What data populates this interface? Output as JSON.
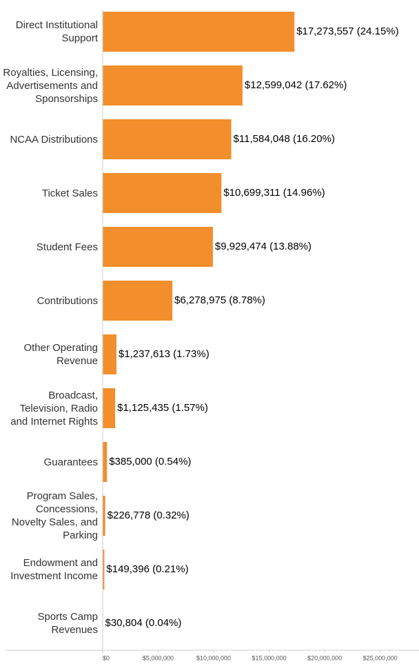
{
  "chart_data": {
    "type": "bar",
    "orientation": "horizontal",
    "categories": [
      "Direct Institutional Support",
      "Royalties, Licensing, Advertisements and Sponsorships",
      "NCAA Distributions",
      "Ticket Sales",
      "Student Fees",
      "Contributions",
      "Other Operating Revenue",
      "Broadcast, Television, Radio and Internet Rights",
      "Guarantees",
      "Program Sales, Concessions, Novelty Sales, and Parking",
      "Endowment and Investment Income",
      "Sports Camp Revenues"
    ],
    "values": [
      17273557,
      12599042,
      11584048,
      10699311,
      9929474,
      6278975,
      1237613,
      1125435,
      385000,
      226778,
      149396,
      30804
    ],
    "value_labels": [
      "$17,273,557 (24.15%)",
      "$12,599,042 (17.62%)",
      "$11,584,048 (16.20%)",
      "$10,699,311 (14.96%)",
      "$9,929,474 (13.88%)",
      "$6,278,975 (8.78%)",
      "$1,237,613 (1.73%)",
      "$1,125,435 (1.57%)",
      "$385,000 (0.54%)",
      "$226,778 (0.32%)",
      "$149,396 (0.21%)",
      "$30,804 (0.04%)"
    ],
    "color": "#f28e2b",
    "xlim": [
      0,
      28500000
    ],
    "xticks": [
      {
        "value": 0,
        "label": "$0"
      },
      {
        "value": 5000000,
        "label": "$5,000,000"
      },
      {
        "value": 10000000,
        "label": "$10,000,000"
      },
      {
        "value": 15000000,
        "label": "$15,000,000"
      },
      {
        "value": 20000000,
        "label": "$20,000,000"
      },
      {
        "value": 25000000,
        "label": "$25,000,000"
      }
    ]
  }
}
